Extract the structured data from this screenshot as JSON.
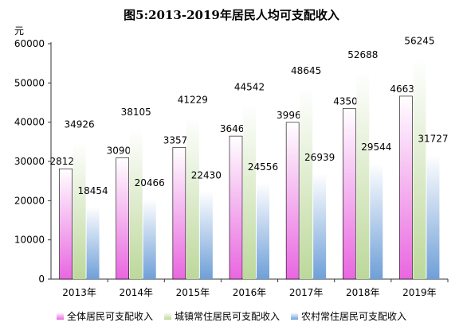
{
  "chart_data": {
    "type": "bar",
    "title": "图5:2013-2019年居民人均可支配收入",
    "ylabel": "元",
    "xlabel": "",
    "ylim": [
      0,
      60000
    ],
    "yticks": [
      0,
      10000,
      20000,
      30000,
      40000,
      50000,
      60000
    ],
    "categories": [
      "2013年",
      "2014年",
      "2015年",
      "2016年",
      "2017年",
      "2018年",
      "2019年"
    ],
    "series": [
      {
        "name": "全体居民可支配收入",
        "color": "#e966e0",
        "values": [
          28126,
          30908,
          33578,
          36461,
          39963,
          43500,
          46634
        ]
      },
      {
        "name": "城镇常住居民可支配收入",
        "color": "#bcd89a",
        "values": [
          34926,
          38105,
          41229,
          44542,
          48645,
          52688,
          56245
        ]
      },
      {
        "name": "农村常住居民可支配收入",
        "color": "#6f9fd8",
        "values": [
          18454,
          20466,
          22430,
          24556,
          26939,
          29544,
          31727
        ]
      }
    ],
    "grid": false,
    "legend": "bottom",
    "data_labels": true
  }
}
